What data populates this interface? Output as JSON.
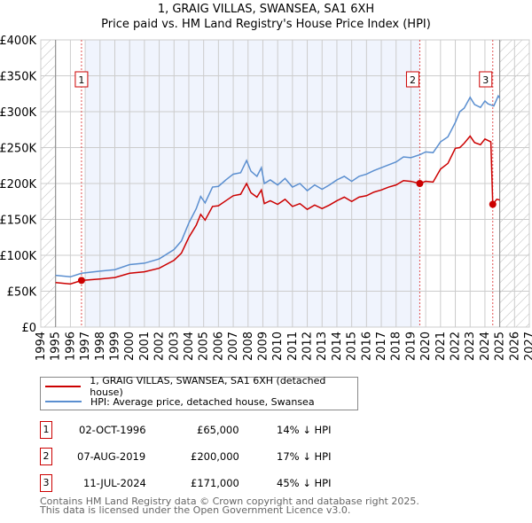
{
  "title_line1": "1, GRAIG VILLAS, SWANSEA, SA1 6XH",
  "title_line2": "Price paid vs. HM Land Registry's House Price Index (HPI)",
  "chart_data": {
    "type": "line",
    "title": "1, GRAIG VILLAS, SWANSEA, SA1 6XH — Price paid vs. HM Land Registry's House Price Index (HPI)",
    "xlabel": "",
    "ylabel": "",
    "xlim": [
      1994,
      2027
    ],
    "ylim": [
      0,
      400000
    ],
    "x_ticks": [
      "1994",
      "1995",
      "1996",
      "1997",
      "1998",
      "1999",
      "2000",
      "2001",
      "2002",
      "2003",
      "2004",
      "2005",
      "2006",
      "2007",
      "2008",
      "2009",
      "2010",
      "2011",
      "2012",
      "2013",
      "2014",
      "2015",
      "2016",
      "2017",
      "2018",
      "2019",
      "2020",
      "2021",
      "2022",
      "2023",
      "2024",
      "2025",
      "2026",
      "2027"
    ],
    "y_ticks": [
      {
        "v": 0,
        "label": "£0"
      },
      {
        "v": 50000,
        "label": "£50K"
      },
      {
        "v": 100000,
        "label": "£100K"
      },
      {
        "v": 150000,
        "label": "£150K"
      },
      {
        "v": 200000,
        "label": "£200K"
      },
      {
        "v": 250000,
        "label": "£250K"
      },
      {
        "v": 300000,
        "label": "£300K"
      },
      {
        "v": 350000,
        "label": "£350K"
      },
      {
        "v": 400000,
        "label": "£400K"
      }
    ],
    "grid": true,
    "hatched_ranges": [
      [
        1994,
        1995
      ],
      [
        2025,
        2027
      ]
    ],
    "shaded_range": [
      1997,
      2019.6
    ],
    "series": [
      {
        "name": "1, GRAIG VILLAS, SWANSEA, SA1 6XH (detached house)",
        "color": "#cc0000",
        "x": [
          1995,
          1996,
          1996.75,
          1998,
          1999,
          2000,
          2001,
          2002,
          2003,
          2003.5,
          2004,
          2004.5,
          2004.8,
          2005.1,
          2005.6,
          2006,
          2006.5,
          2007,
          2007.5,
          2007.9,
          2008.2,
          2008.6,
          2008.9,
          2009.1,
          2009.5,
          2010,
          2010.5,
          2011,
          2011.5,
          2012,
          2012.5,
          2013,
          2013.5,
          2014,
          2014.5,
          2015,
          2015.5,
          2016,
          2016.5,
          2017,
          2017.5,
          2018,
          2018.5,
          2019,
          2019.6,
          2020,
          2020.5,
          2021,
          2021.5,
          2022,
          2022.3,
          2022.6,
          2023,
          2023.3,
          2023.7,
          2024,
          2024.4,
          2024.53,
          2024.8,
          2025
        ],
        "y": [
          62000,
          60000,
          65000,
          67000,
          69000,
          75000,
          77000,
          82000,
          93000,
          103000,
          125000,
          142000,
          157000,
          149000,
          168000,
          169000,
          176000,
          183000,
          185000,
          200000,
          187000,
          181000,
          191000,
          172000,
          176000,
          171000,
          178000,
          168000,
          172000,
          164000,
          170000,
          165000,
          170000,
          176000,
          181000,
          175000,
          181000,
          183000,
          188000,
          191000,
          195000,
          198000,
          204000,
          203000,
          200000,
          203000,
          202000,
          220000,
          228000,
          249000,
          250000,
          256000,
          266000,
          257000,
          254000,
          262000,
          258000,
          171000,
          178000,
          177000
        ]
      },
      {
        "name": "HPI: Average price, detached house, Swansea",
        "color": "#5b8fd0",
        "x": [
          1995,
          1996,
          1996.75,
          1998,
          1999,
          2000,
          2001,
          2002,
          2003,
          2003.5,
          2004,
          2004.5,
          2004.8,
          2005.1,
          2005.6,
          2006,
          2006.5,
          2007,
          2007.5,
          2007.9,
          2008.2,
          2008.6,
          2008.9,
          2009.1,
          2009.5,
          2010,
          2010.5,
          2011,
          2011.5,
          2012,
          2012.5,
          2013,
          2013.5,
          2014,
          2014.5,
          2015,
          2015.5,
          2016,
          2016.5,
          2017,
          2017.5,
          2018,
          2018.5,
          2019,
          2019.6,
          2020,
          2020.5,
          2021,
          2021.5,
          2022,
          2022.3,
          2022.6,
          2023,
          2023.3,
          2023.7,
          2024,
          2024.2,
          2024.6,
          2024.9,
          2025
        ],
        "y": [
          72000,
          70000,
          75000,
          78000,
          80000,
          87000,
          89000,
          95000,
          108000,
          120000,
          145000,
          165000,
          182000,
          173000,
          195000,
          196000,
          205000,
          213000,
          215000,
          232000,
          217000,
          210000,
          222000,
          200000,
          205000,
          198000,
          207000,
          195000,
          200000,
          190000,
          198000,
          192000,
          198000,
          205000,
          210000,
          203000,
          210000,
          213000,
          218000,
          222000,
          226000,
          230000,
          237000,
          236000,
          240000,
          244000,
          243000,
          258000,
          265000,
          285000,
          300000,
          305000,
          320000,
          310000,
          306000,
          315000,
          311000,
          308000,
          322000,
          319000
        ]
      }
    ],
    "sales": [
      {
        "n": "1",
        "x": 1996.75,
        "y": 65000
      },
      {
        "n": "2",
        "x": 2019.6,
        "y": 200000
      },
      {
        "n": "3",
        "x": 2024.53,
        "y": 171000
      }
    ]
  },
  "legend": {
    "property": "1, GRAIG VILLAS, SWANSEA, SA1 6XH (detached house)",
    "hpi": "HPI: Average price, detached house, Swansea"
  },
  "table": [
    {
      "n": "1",
      "date": "02-OCT-1996",
      "price": "£65,000",
      "diff": "14% ↓ HPI"
    },
    {
      "n": "2",
      "date": "07-AUG-2019",
      "price": "£200,000",
      "diff": "17% ↓ HPI"
    },
    {
      "n": "3",
      "date": "11-JUL-2024",
      "price": "£171,000",
      "diff": "45% ↓ HPI"
    }
  ],
  "footer": {
    "line1": "Contains HM Land Registry data © Crown copyright and database right 2025.",
    "line2": "This data is licensed under the Open Government Licence v3.0."
  }
}
